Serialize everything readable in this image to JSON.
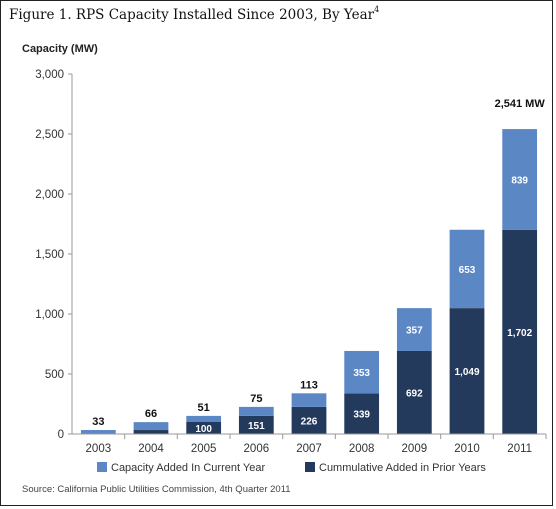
{
  "figure": {
    "title": "Figure 1.  RPS Capacity Installed Since 2003, By Year",
    "title_sup": "4",
    "source": "Source: California Public Utilities Commission, 4th Quarter 2011"
  },
  "colors": {
    "current_year": "#5b87c4",
    "prior_years": "#233a5c",
    "axis": "#9a9a9a"
  },
  "chart_data": {
    "type": "bar",
    "stacked": true,
    "title": "Figure 1.  RPS Capacity Installed Since 2003, By Year",
    "ylabel": "Capacity (MW)",
    "xlabel": "",
    "ylim": [
      0,
      3000
    ],
    "yticks": [
      0,
      500,
      1000,
      1500,
      2000,
      2500,
      3000
    ],
    "ytick_labels": [
      "0",
      "500",
      "1,000",
      "1,500",
      "2,000",
      "2,500",
      "3,000"
    ],
    "categories": [
      "2003",
      "2004",
      "2005",
      "2006",
      "2007",
      "2008",
      "2009",
      "2010",
      "2011"
    ],
    "grid": false,
    "legend_position": "bottom",
    "series": [
      {
        "name": "Cummulative Added in Prior Years",
        "values": [
          0,
          33,
          100,
          151,
          226,
          339,
          692,
          1049,
          1702
        ],
        "labels": [
          "",
          "",
          "100",
          "151",
          "226",
          "339",
          "692",
          "1,049",
          "1,702"
        ]
      },
      {
        "name": "Capacity Added In Current Year",
        "values": [
          33,
          66,
          51,
          75,
          113,
          353,
          357,
          653,
          839
        ],
        "labels": [
          "33",
          "66",
          "51",
          "75",
          "113",
          "353",
          "357",
          "653",
          "839"
        ]
      }
    ],
    "annotations": [
      {
        "category": "2011",
        "text": "2,541 MW"
      }
    ]
  }
}
